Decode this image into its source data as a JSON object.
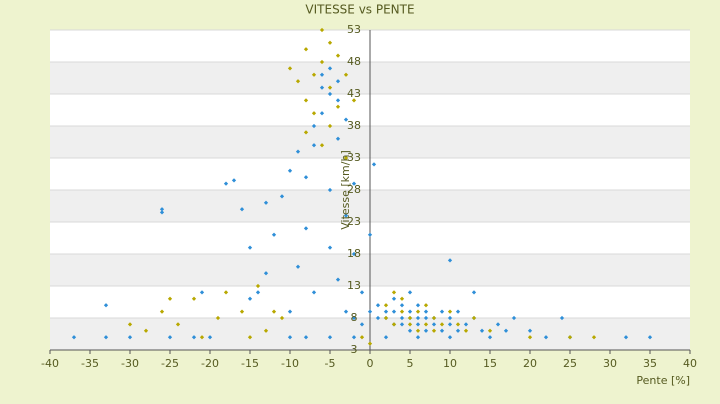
{
  "chart_data": {
    "type": "scatter",
    "title": "VITESSE vs PENTE",
    "x_label": "Pente [%]",
    "y_label": "Vitesse [km/h]",
    "xlim": [
      -40,
      40
    ],
    "xticks": [
      -40,
      -35,
      -30,
      -25,
      -20,
      -15,
      -10,
      -5,
      0,
      5,
      10,
      15,
      20,
      25,
      30,
      35,
      40
    ],
    "ylim": [
      3,
      53
    ],
    "yticks": [
      3,
      8,
      13,
      18,
      23,
      28,
      33,
      38,
      43,
      48,
      53
    ],
    "grid": true,
    "series": [
      {
        "color": "#2f8fd8",
        "x": [
          -37,
          -33,
          -33,
          -30,
          -25,
          -26,
          -26,
          -22,
          -21,
          -20,
          -18,
          -17,
          -16,
          -15,
          -14,
          -13,
          -12,
          -11,
          -10,
          -10,
          -9,
          -9,
          -8,
          -8,
          -7,
          -7,
          -7,
          -6,
          -6,
          -6,
          -5,
          -5,
          -5,
          -5,
          -4,
          -4,
          -4,
          -4,
          -3,
          -3,
          -3,
          -3,
          -2,
          -2,
          -2,
          -1,
          -1,
          0,
          0,
          0.5,
          1,
          1,
          2,
          2,
          3,
          3,
          3,
          4,
          4,
          4,
          5,
          5,
          5,
          6,
          6,
          6,
          7,
          7,
          7,
          8,
          8,
          9,
          9,
          10,
          10,
          11,
          11,
          12,
          13,
          14,
          15,
          16,
          17,
          18,
          20,
          22,
          24,
          25,
          32,
          35,
          13,
          10,
          5,
          -10,
          -13,
          -15,
          -8,
          -5,
          -2,
          2,
          6,
          10
        ],
        "values": [
          5,
          5,
          10,
          5,
          5,
          25,
          24.5,
          5,
          12,
          5,
          29,
          29.5,
          25,
          19,
          12,
          26,
          21,
          27,
          31,
          5,
          34,
          16,
          22,
          30,
          35,
          38,
          12,
          40,
          44,
          46,
          43,
          47,
          28,
          19,
          36,
          42,
          45,
          14,
          33,
          39,
          24,
          9,
          29,
          18,
          8,
          12,
          7,
          21,
          9,
          32,
          8,
          10,
          8,
          9,
          7,
          9,
          11,
          7,
          8,
          10,
          6,
          8,
          9,
          7,
          8,
          10,
          6,
          8,
          9,
          7,
          8,
          6,
          9,
          7,
          8,
          6,
          9,
          7,
          8,
          6,
          5,
          7,
          6,
          8,
          6,
          5,
          8,
          5,
          5,
          5,
          12,
          17,
          12,
          9,
          15,
          11,
          5,
          5,
          5,
          5,
          5,
          5
        ]
      },
      {
        "color": "#b8a800",
        "x": [
          -30,
          -28,
          -26,
          -25,
          -24,
          -22,
          -21,
          -19,
          -18,
          -16,
          -14,
          -13,
          -12,
          -11,
          -10,
          -9,
          -8,
          -8,
          -7,
          -7,
          -6,
          -6,
          -5,
          -5,
          -5,
          -4,
          -4,
          -3,
          -3,
          -2,
          -6,
          -8,
          2,
          2,
          3,
          3,
          4,
          4,
          5,
          5,
          6,
          6,
          7,
          7,
          8,
          8,
          9,
          10,
          11,
          12,
          13,
          15,
          20,
          25,
          28,
          -1,
          0,
          -15
        ],
        "values": [
          7,
          6,
          9,
          11,
          7,
          11,
          5,
          8,
          12,
          9,
          13,
          6,
          9,
          8,
          47,
          45,
          42,
          50,
          46,
          40,
          53,
          48,
          51,
          44,
          38,
          49,
          41,
          46,
          33,
          42,
          35,
          37,
          8,
          10,
          12,
          7,
          9,
          11,
          7,
          8,
          9,
          6,
          7,
          10,
          6,
          8,
          7,
          9,
          7,
          6,
          8,
          6,
          5,
          5,
          5,
          5,
          4,
          5
        ]
      }
    ]
  }
}
